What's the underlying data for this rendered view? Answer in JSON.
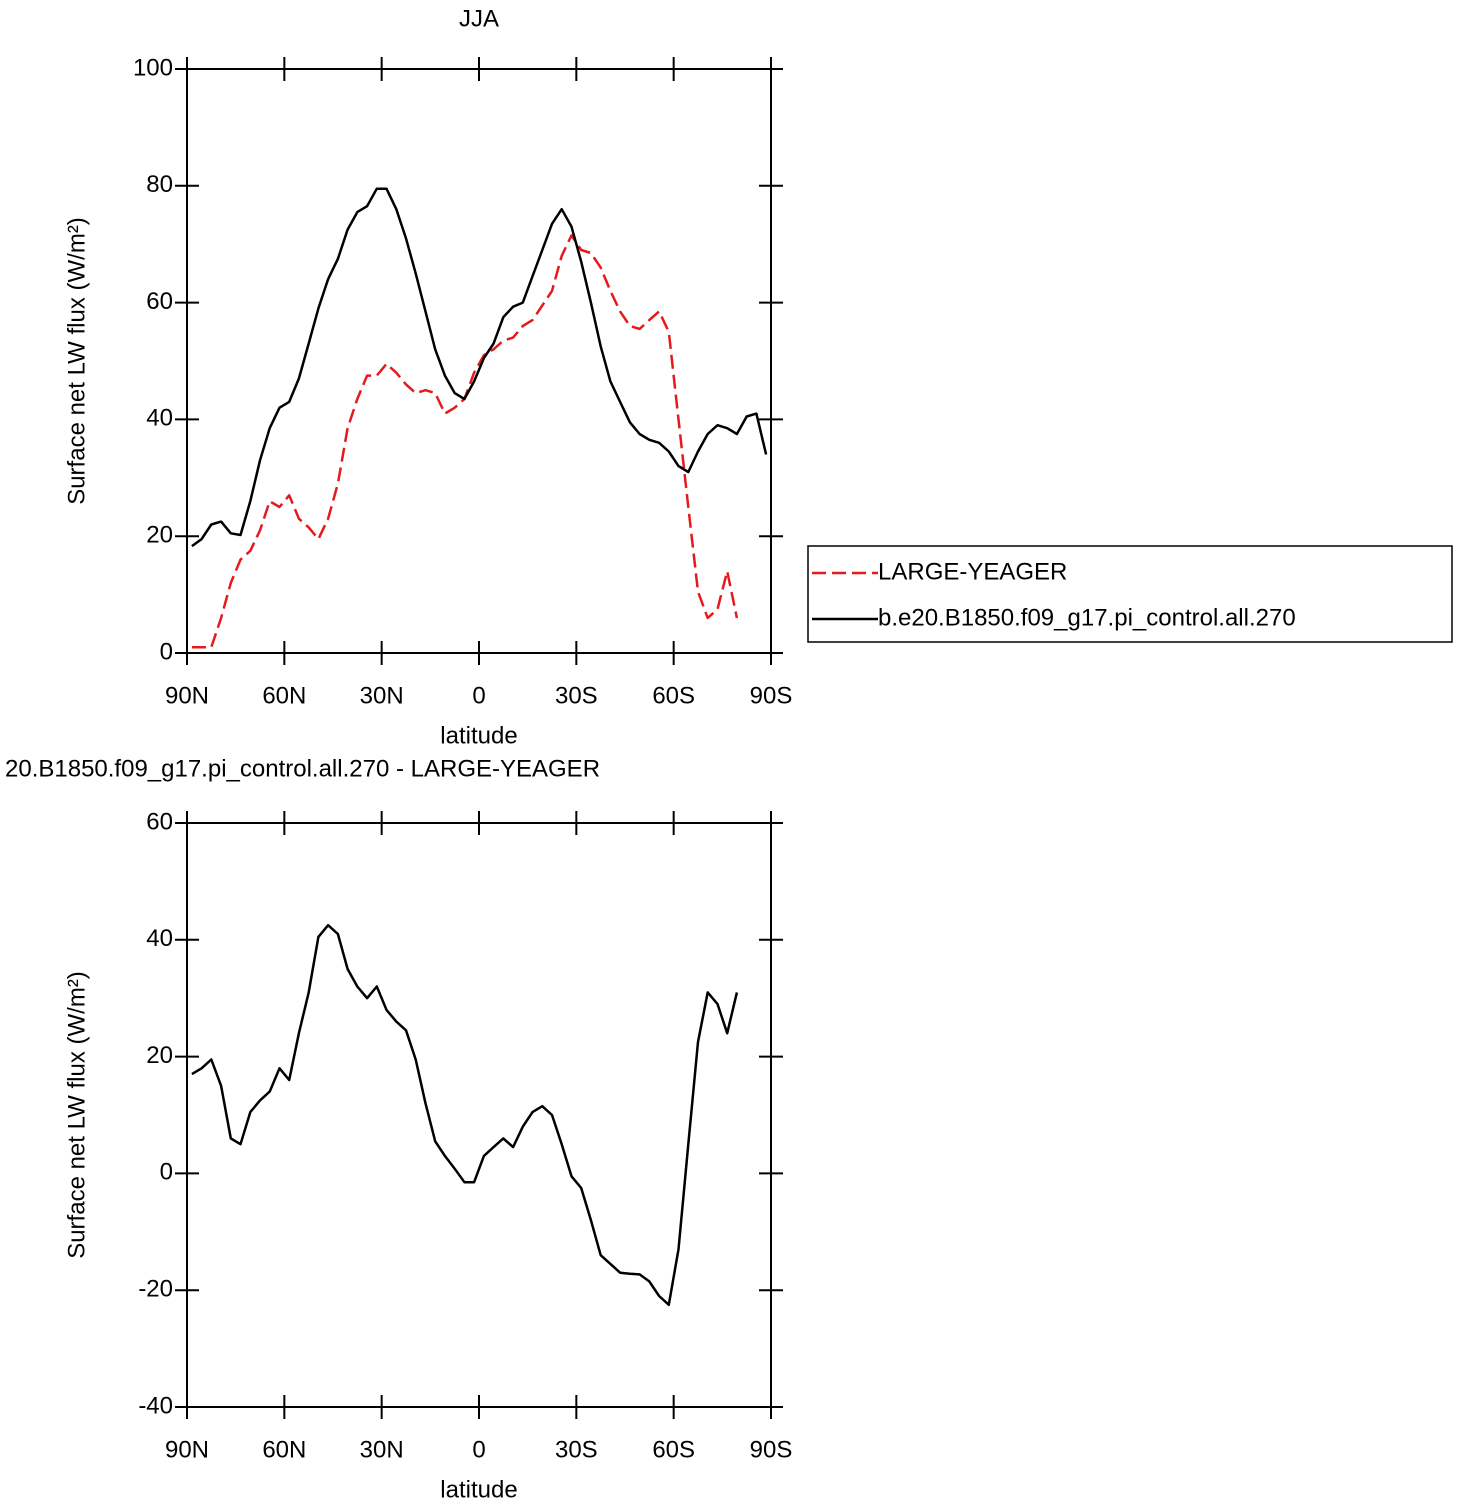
{
  "chart_data": [
    {
      "type": "line",
      "title": "JJA",
      "xlabel": "latitude",
      "ylabel": "Surface net LW flux (W/m²)",
      "x": [
        88.5,
        85.5,
        82.5,
        79.5,
        76.5,
        73.5,
        70.5,
        67.5,
        64.5,
        61.5,
        58.5,
        55.5,
        52.5,
        49.5,
        46.5,
        43.5,
        40.5,
        37.5,
        34.5,
        31.5,
        28.5,
        25.5,
        22.5,
        19.5,
        16.5,
        13.5,
        10.5,
        7.5,
        4.5,
        1.5,
        -1.5,
        -4.5,
        -7.5,
        -10.5,
        -13.5,
        -16.5,
        -19.5,
        -22.5,
        -25.5,
        -28.5,
        -31.5,
        -34.5,
        -37.5,
        -40.5,
        -43.5,
        -46.5,
        -49.5,
        -52.5,
        -55.5,
        -58.5,
        -61.5,
        -64.5,
        -67.5,
        -70.5,
        -73.5,
        -76.5,
        -79.5,
        -82.5,
        -85.5,
        -88.5
      ],
      "xlim": [
        90,
        -90
      ],
      "xticks": [
        {
          "value": 90,
          "label": "90N"
        },
        {
          "value": 60,
          "label": "60N"
        },
        {
          "value": 30,
          "label": "30N"
        },
        0,
        {
          "value": -30,
          "label": "30S"
        },
        {
          "value": -60,
          "label": "60S"
        },
        {
          "value": -90,
          "label": "90S"
        }
      ],
      "ylim": [
        0,
        100
      ],
      "yticks": [
        0,
        20,
        40,
        60,
        80,
        100
      ],
      "legend": "right",
      "series": [
        {
          "name": "LARGE-YEAGER",
          "color": "#e41a1c",
          "linestyle": "dashed",
          "values": [
            1,
            1,
            1,
            6,
            12,
            16,
            17.5,
            21,
            26,
            25,
            27,
            23,
            21.5,
            19.5,
            23,
            29,
            38.5,
            43.5,
            47.5,
            47.5,
            49.5,
            48,
            46,
            44.5,
            45,
            44.5,
            41,
            42,
            43.5,
            48,
            51,
            52,
            53.5,
            54,
            56,
            57,
            59.5,
            62,
            68,
            71.5,
            69,
            68.5,
            66,
            62,
            58.5,
            56,
            55.5,
            57,
            58.5,
            55,
            40,
            25,
            10.5,
            6,
            7.5,
            14,
            6,
            null,
            null,
            null
          ]
        },
        {
          "name": "b.e20.B1850.f09_g17.pi_control.all.270",
          "color": "#000000",
          "linestyle": "solid",
          "values": [
            18.3,
            19.5,
            22,
            22.5,
            20.5,
            20.2,
            26,
            33,
            38.5,
            42,
            43,
            47,
            53,
            59,
            64,
            67.5,
            72.5,
            75.5,
            76.5,
            79.5,
            79.5,
            76,
            71,
            65,
            58.5,
            52,
            47.5,
            44.5,
            43.5,
            46.5,
            50.5,
            53,
            57.5,
            59.3,
            60,
            64.5,
            69,
            73.5,
            76,
            73,
            67,
            60,
            52.5,
            46.5,
            43,
            39.5,
            37.5,
            36.5,
            36,
            34.5,
            32,
            31,
            34.5,
            37.5,
            39,
            38.5,
            37.5,
            40.5,
            41,
            34
          ]
        }
      ]
    },
    {
      "type": "line",
      "title": "20.B1850.f09_g17.pi_control.all.270 - LARGE-YEAGER",
      "xlabel": "latitude",
      "ylabel": "Surface net LW flux (W/m²)",
      "x": [
        88.5,
        85.5,
        82.5,
        79.5,
        76.5,
        73.5,
        70.5,
        67.5,
        64.5,
        61.5,
        58.5,
        55.5,
        52.5,
        49.5,
        46.5,
        43.5,
        40.5,
        37.5,
        34.5,
        31.5,
        28.5,
        25.5,
        22.5,
        19.5,
        16.5,
        13.5,
        10.5,
        7.5,
        4.5,
        1.5,
        -1.5,
        -4.5,
        -7.5,
        -10.5,
        -13.5,
        -16.5,
        -19.5,
        -22.5,
        -25.5,
        -28.5,
        -31.5,
        -34.5,
        -37.5,
        -40.5,
        -43.5,
        -46.5,
        -49.5,
        -52.5,
        -55.5,
        -58.5,
        -61.5,
        -64.5,
        -67.5,
        -70.5,
        -73.5,
        -76.5,
        -79.5,
        -82.5,
        -85.5,
        -88.5
      ],
      "xlim": [
        90,
        -90
      ],
      "xticks": [
        {
          "value": 90,
          "label": "90N"
        },
        {
          "value": 60,
          "label": "60N"
        },
        {
          "value": 30,
          "label": "30N"
        },
        0,
        {
          "value": -30,
          "label": "30S"
        },
        {
          "value": -60,
          "label": "60S"
        },
        {
          "value": -90,
          "label": "90S"
        }
      ],
      "ylim": [
        -40,
        60
      ],
      "yticks": [
        -40,
        -20,
        0,
        20,
        40,
        60
      ],
      "series": [
        {
          "color": "#000000",
          "linestyle": "solid",
          "values": [
            17,
            18,
            19.5,
            15,
            6,
            5,
            10.5,
            12.5,
            14,
            18,
            16,
            24,
            31,
            40.5,
            42.5,
            41,
            35,
            32,
            30,
            32,
            28,
            26,
            24.5,
            19.5,
            12,
            5.5,
            3,
            0.8,
            -1.5,
            -1.5,
            3,
            4.5,
            6,
            4.5,
            8,
            10.5,
            11.5,
            10,
            5,
            -0.5,
            -2.5,
            -8,
            -14,
            -15.5,
            -17,
            -17.2,
            -17.3,
            -18.5,
            -21,
            -22.5,
            -13,
            5,
            22.5,
            31,
            29,
            24,
            31,
            null,
            null,
            null
          ]
        }
      ]
    }
  ]
}
